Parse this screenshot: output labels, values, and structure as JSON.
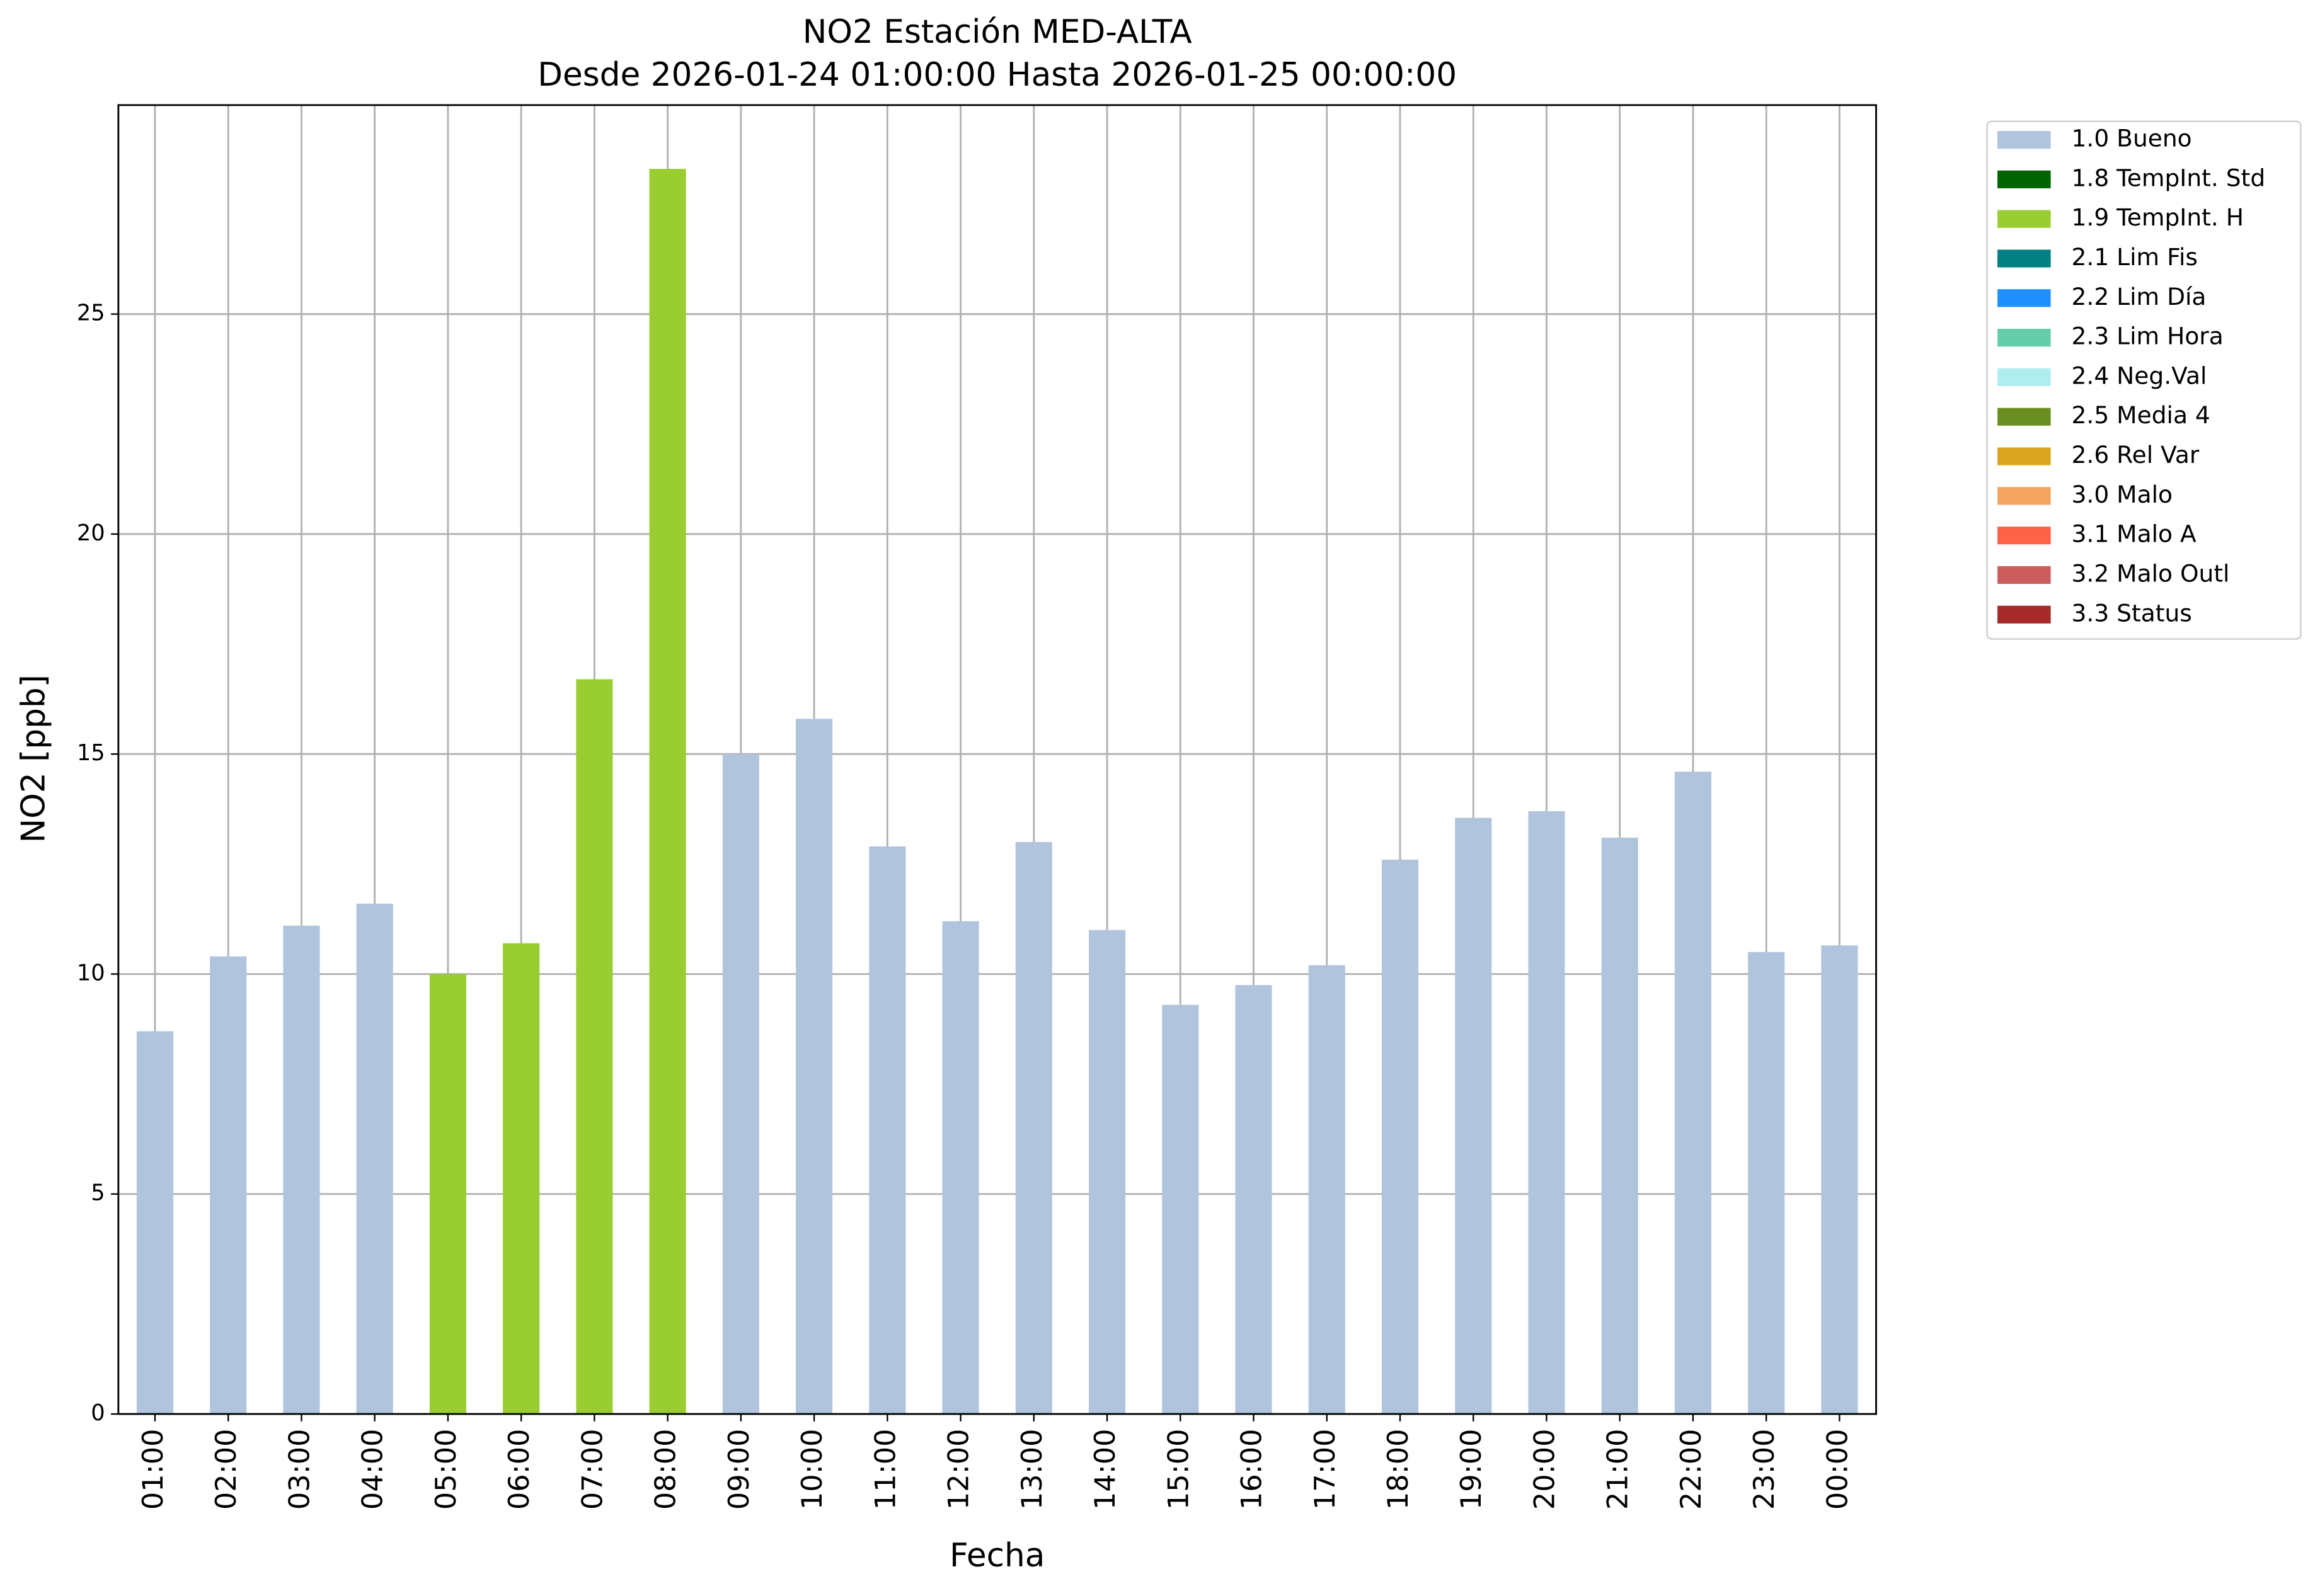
{
  "chart_data": {
    "type": "stacked_bar",
    "title": "NO2 Estación MED-ALTA",
    "subtitle": "Desde 2026-01-24 01:00:00 Hasta 2026-01-25 00:00:00",
    "x_label": "Fecha",
    "y_label": "NO2 [ppb]",
    "categories": [
      "01:00",
      "02:00",
      "03:00",
      "04:00",
      "05:00",
      "06:00",
      "07:00",
      "08:00",
      "09:00",
      "10:00",
      "11:00",
      "12:00",
      "13:00",
      "14:00",
      "15:00",
      "16:00",
      "17:00",
      "18:00",
      "19:00",
      "20:00",
      "21:00",
      "22:00",
      "23:00",
      "00:00"
    ],
    "series": [
      {
        "name": "1.0 Bueno",
        "color": "#b0c4de",
        "values": [
          8.7,
          10.4,
          11.1,
          11.6,
          null,
          null,
          null,
          null,
          15.0,
          15.8,
          12.9,
          11.2,
          13.0,
          11.0,
          9.3,
          9.75,
          10.2,
          12.6,
          13.55,
          13.7,
          13.1,
          14.6,
          10.5,
          10.65
        ]
      },
      {
        "name": "1.8 TempInt. Std",
        "color": "#006400",
        "values": [
          null,
          null,
          null,
          null,
          null,
          null,
          null,
          null,
          null,
          null,
          null,
          null,
          null,
          null,
          null,
          null,
          null,
          null,
          null,
          null,
          null,
          null,
          null,
          null
        ]
      },
      {
        "name": "1.9 TempInt. H",
        "color": "#9acd32",
        "values": [
          null,
          null,
          null,
          null,
          10.0,
          10.7,
          16.7,
          28.3,
          null,
          null,
          null,
          null,
          null,
          null,
          null,
          null,
          null,
          null,
          null,
          null,
          null,
          null,
          null,
          null
        ]
      },
      {
        "name": "2.1 Lim Fis",
        "color": "#008080",
        "values": [
          null,
          null,
          null,
          null,
          null,
          null,
          null,
          null,
          null,
          null,
          null,
          null,
          null,
          null,
          null,
          null,
          null,
          null,
          null,
          null,
          null,
          null,
          null,
          null
        ]
      },
      {
        "name": "2.2 Lim Día",
        "color": "#1e90ff",
        "values": [
          null,
          null,
          null,
          null,
          null,
          null,
          null,
          null,
          null,
          null,
          null,
          null,
          null,
          null,
          null,
          null,
          null,
          null,
          null,
          null,
          null,
          null,
          null,
          null
        ]
      },
      {
        "name": "2.3 Lim Hora",
        "color": "#66cdaa",
        "values": [
          null,
          null,
          null,
          null,
          null,
          null,
          null,
          null,
          null,
          null,
          null,
          null,
          null,
          null,
          null,
          null,
          null,
          null,
          null,
          null,
          null,
          null,
          null,
          null
        ]
      },
      {
        "name": "2.4 Neg.Val",
        "color": "#afeeee",
        "values": [
          null,
          null,
          null,
          null,
          null,
          null,
          null,
          null,
          null,
          null,
          null,
          null,
          null,
          null,
          null,
          null,
          null,
          null,
          null,
          null,
          null,
          null,
          null,
          null
        ]
      },
      {
        "name": "2.5 Media 4",
        "color": "#6b8e23",
        "values": [
          null,
          null,
          null,
          null,
          null,
          null,
          null,
          null,
          null,
          null,
          null,
          null,
          null,
          null,
          null,
          null,
          null,
          null,
          null,
          null,
          null,
          null,
          null,
          null
        ]
      },
      {
        "name": "2.6 Rel Var",
        "color": "#daa520",
        "values": [
          null,
          null,
          null,
          null,
          null,
          null,
          null,
          null,
          null,
          null,
          null,
          null,
          null,
          null,
          null,
          null,
          null,
          null,
          null,
          null,
          null,
          null,
          null,
          null
        ]
      },
      {
        "name": "3.0 Malo",
        "color": "#f4a460",
        "values": [
          null,
          null,
          null,
          null,
          null,
          null,
          null,
          null,
          null,
          null,
          null,
          null,
          null,
          null,
          null,
          null,
          null,
          null,
          null,
          null,
          null,
          null,
          null,
          null
        ]
      },
      {
        "name": "3.1 Malo A",
        "color": "#ff6347",
        "values": [
          null,
          null,
          null,
          null,
          null,
          null,
          null,
          null,
          null,
          null,
          null,
          null,
          null,
          null,
          null,
          null,
          null,
          null,
          null,
          null,
          null,
          null,
          null,
          null
        ]
      },
      {
        "name": "3.2 Malo Outl",
        "color": "#cd5c5c",
        "values": [
          null,
          null,
          null,
          null,
          null,
          null,
          null,
          null,
          null,
          null,
          null,
          null,
          null,
          null,
          null,
          null,
          null,
          null,
          null,
          null,
          null,
          null,
          null,
          null
        ]
      },
      {
        "name": "3.3 Status",
        "color": "#a52a2a",
        "values": [
          null,
          null,
          null,
          null,
          null,
          null,
          null,
          null,
          null,
          null,
          null,
          null,
          null,
          null,
          null,
          null,
          null,
          null,
          null,
          null,
          null,
          null,
          null,
          null
        ]
      }
    ],
    "ylim": [
      0,
      29.75
    ],
    "yticks": [
      0,
      5,
      10,
      15,
      20,
      25
    ],
    "grid": true,
    "legend": "outside-right"
  }
}
